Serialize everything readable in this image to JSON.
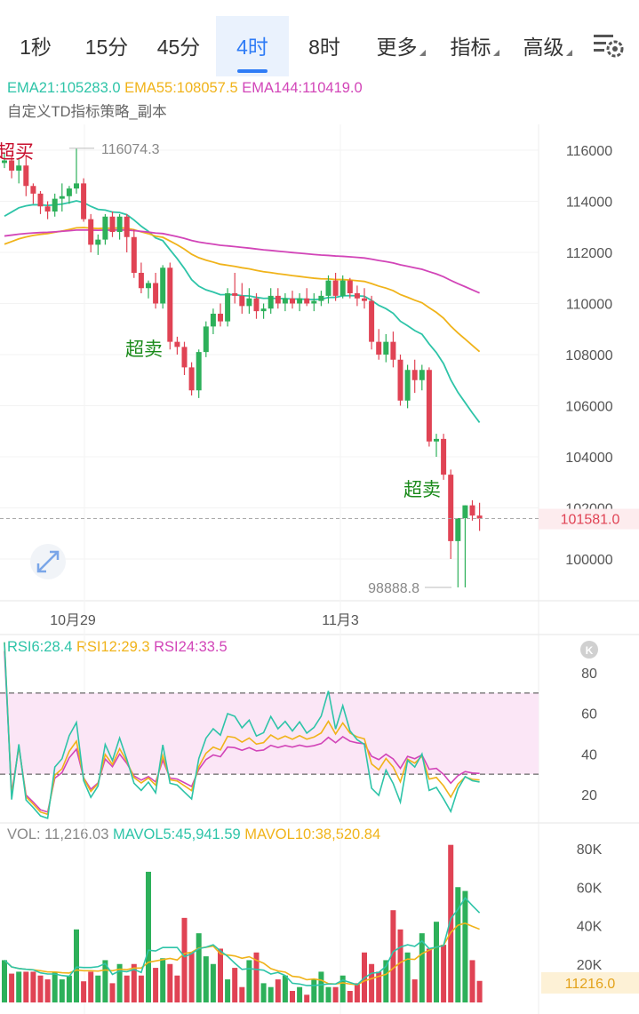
{
  "tabs": [
    "1秒",
    "15分",
    "45分",
    "4时",
    "8时",
    "更多",
    "指标",
    "高级"
  ],
  "active_tab": "4时",
  "indicators": {
    "ema21": "EMA21:105283.0",
    "ema55": "EMA55:108057.5",
    "ema144": "EMA144:110419.0",
    "strategy": "自定义TD指标策略_副本",
    "rsi6": "RSI6:28.4",
    "rsi12": "RSI12:29.3",
    "rsi24": "RSI24:33.5",
    "vol": "VOL: 11,216.03",
    "mavol5": "MAVOL5:45,941.59",
    "mavol10": "MAVOL10:38,520.84"
  },
  "colors": {
    "up": "#2db05a",
    "down": "#e04354",
    "ema21": "#2ec4a8",
    "ema55": "#f0b31a",
    "ema144": "#d245b8",
    "rsi6": "#2ec4a8",
    "rsi12": "#f0b31a",
    "rsi24": "#d245b8",
    "accent": "#2f7cf6",
    "signal_buy": "#c8102e",
    "signal_sell": "#1a8a1a"
  },
  "icons": [
    "settings-gear-icon",
    "expand-icon",
    "collapse-k-icon"
  ],
  "chart_data": {
    "type": "candlestick",
    "price_axis_ticks": [
      116000,
      114000,
      112000,
      110000,
      108000,
      106000,
      104000,
      102000,
      100000
    ],
    "current_price": "101581.0",
    "high_marker": "116074.3",
    "low_marker": "98888.8",
    "x_labels": [
      "10月29",
      "11月3"
    ],
    "signals": [
      {
        "text": "超买",
        "type": "overbought"
      },
      {
        "text": "超卖",
        "type": "oversold"
      },
      {
        "text": "超卖",
        "type": "oversold"
      }
    ],
    "candles": [
      [
        115500,
        115900,
        115300,
        115600
      ],
      [
        115600,
        115800,
        114900,
        115200
      ],
      [
        115200,
        115700,
        114700,
        115400
      ],
      [
        115400,
        115800,
        114200,
        114600
      ],
      [
        114600,
        114700,
        113900,
        114300
      ],
      [
        114300,
        114400,
        113500,
        113800
      ],
      [
        113800,
        114000,
        113300,
        113600
      ],
      [
        113600,
        114300,
        113400,
        114100
      ],
      [
        114100,
        114700,
        113600,
        114200
      ],
      [
        114200,
        114600,
        113900,
        114500
      ],
      [
        114500,
        116074.3,
        114300,
        114700
      ],
      [
        114700,
        114900,
        113200,
        113300
      ],
      [
        113300,
        113500,
        112000,
        112300
      ],
      [
        112300,
        112700,
        111900,
        112500
      ],
      [
        112500,
        113500,
        112300,
        113400
      ],
      [
        113400,
        113600,
        112600,
        112800
      ],
      [
        112800,
        113500,
        112500,
        113400
      ],
      [
        113400,
        113500,
        112000,
        112600
      ],
      [
        112600,
        112900,
        111000,
        111200
      ],
      [
        111200,
        111600,
        110400,
        110600
      ],
      [
        110600,
        110900,
        110200,
        110800
      ],
      [
        110800,
        111200,
        109800,
        110000
      ],
      [
        110000,
        111500,
        109800,
        111400
      ],
      [
        111400,
        111600,
        108200,
        108500
      ],
      [
        108500,
        108700,
        108000,
        108300
      ],
      [
        108300,
        108500,
        107200,
        107500
      ],
      [
        107500,
        107700,
        106400,
        106600
      ],
      [
        106600,
        108200,
        106300,
        108100
      ],
      [
        108100,
        109300,
        107900,
        109100
      ],
      [
        109100,
        109800,
        108800,
        109600
      ],
      [
        109600,
        110000,
        109100,
        109300
      ],
      [
        109300,
        110600,
        109100,
        110400
      ],
      [
        110400,
        111200,
        110000,
        110300
      ],
      [
        110300,
        110800,
        109600,
        109900
      ],
      [
        109900,
        110600,
        109600,
        110200
      ],
      [
        110200,
        110400,
        109400,
        109700
      ],
      [
        109700,
        110000,
        109400,
        109800
      ],
      [
        109800,
        110600,
        109600,
        110300
      ],
      [
        110300,
        110600,
        109800,
        110000
      ],
      [
        110000,
        110400,
        109700,
        110200
      ],
      [
        110200,
        110500,
        109800,
        110000
      ],
      [
        110000,
        110400,
        109700,
        110200
      ],
      [
        110200,
        110600,
        109900,
        110000
      ],
      [
        110000,
        110400,
        109700,
        110100
      ],
      [
        110100,
        110500,
        109900,
        110300
      ],
      [
        110300,
        111100,
        110000,
        110900
      ],
      [
        110900,
        111200,
        110100,
        110300
      ],
      [
        110300,
        111100,
        110200,
        110900
      ],
      [
        110900,
        111000,
        110200,
        110400
      ],
      [
        110400,
        110700,
        109900,
        110200
      ],
      [
        110200,
        110600,
        109800,
        110100
      ],
      [
        110100,
        110300,
        108200,
        108500
      ],
      [
        108500,
        109000,
        107800,
        108000
      ],
      [
        108000,
        108800,
        107700,
        108500
      ],
      [
        108500,
        108900,
        107500,
        107800
      ],
      [
        107800,
        108000,
        106000,
        106200
      ],
      [
        106200,
        107600,
        105900,
        107400
      ],
      [
        107400,
        107800,
        106500,
        107000
      ],
      [
        107000,
        107600,
        106600,
        107400
      ],
      [
        107400,
        107500,
        104400,
        104600
      ],
      [
        104600,
        104900,
        104000,
        104700
      ],
      [
        104700,
        104900,
        103100,
        103300
      ],
      [
        103300,
        103500,
        100000,
        100700
      ],
      [
        100700,
        101600,
        98888.8,
        101600
      ],
      [
        101600,
        102100,
        98888.8,
        102100
      ],
      [
        102100,
        102300,
        101500,
        101700
      ],
      [
        101700,
        102200,
        101100,
        101581
      ]
    ],
    "rsi": {
      "ticks": [
        80,
        60,
        40,
        20
      ],
      "overbought": 70,
      "oversold": 30
    },
    "vol": {
      "ticks": [
        "80K",
        "60K",
        "40K",
        "20K"
      ],
      "current": "11216.0",
      "values": [
        22000,
        15000,
        16000,
        16000,
        16000,
        14000,
        12000,
        16000,
        12000,
        14000,
        38000,
        11000,
        16000,
        14000,
        22000,
        10000,
        20000,
        14000,
        20000,
        14000,
        68000,
        18000,
        23000,
        20000,
        14000,
        44000,
        26000,
        36000,
        24000,
        20000,
        28000,
        12000,
        18000,
        8000,
        22000,
        26000,
        10000,
        8000,
        12000,
        14000,
        6000,
        8000,
        4000,
        12000,
        16000,
        8000,
        8000,
        14000,
        6000,
        10000,
        26000,
        20000,
        16000,
        22000,
        48000,
        38000,
        26000,
        12000,
        36000,
        28000,
        42000,
        30000,
        82000,
        60000,
        58000,
        22000,
        11216
      ]
    }
  }
}
